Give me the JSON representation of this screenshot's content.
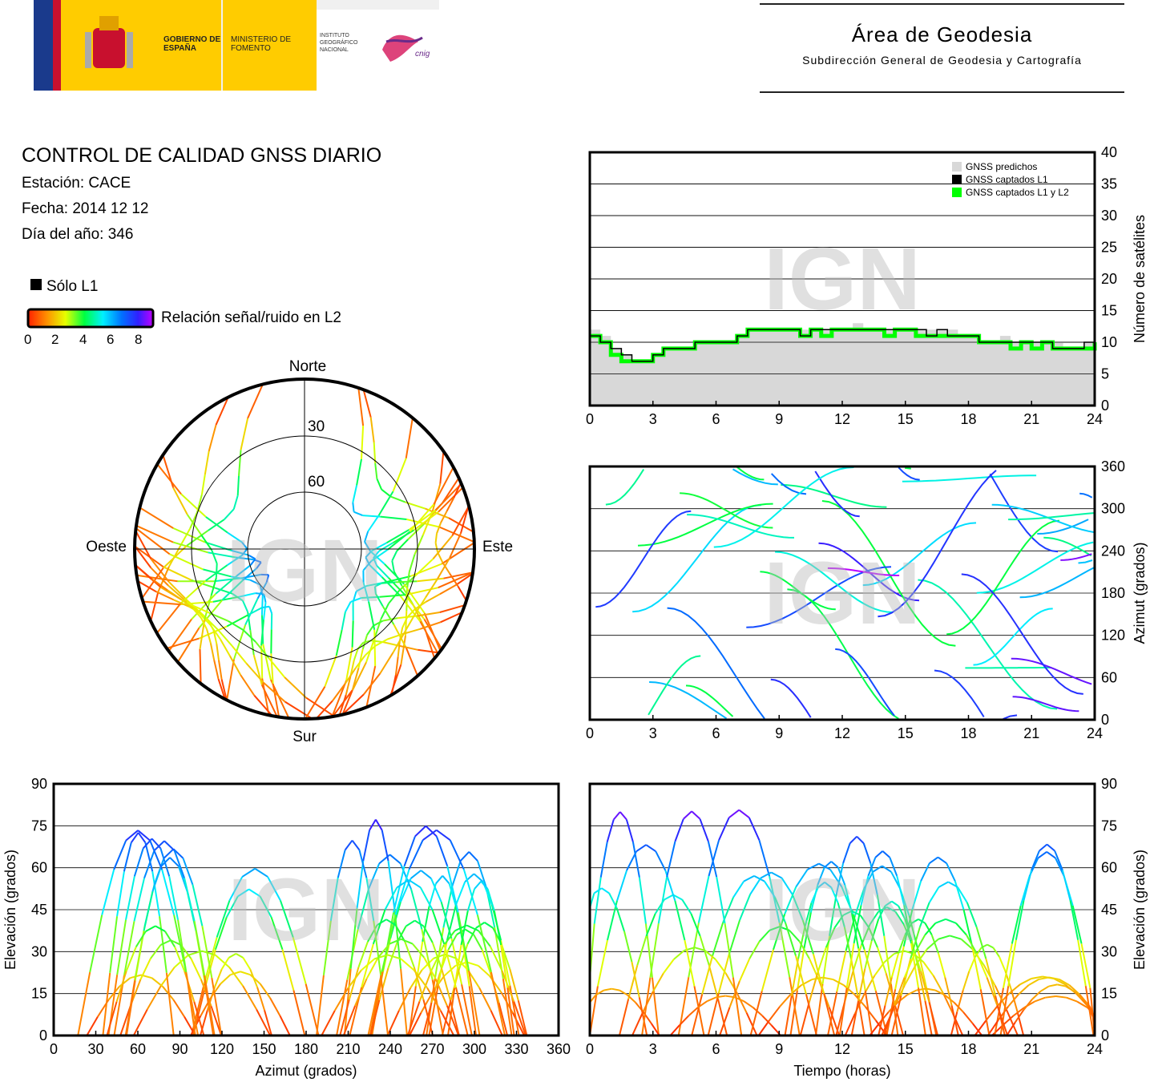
{
  "header": {
    "gobierno": "GOBIERNO DE ESPAÑA",
    "ministerio": "MINISTERIO DE FOMENTO",
    "instituto": "INSTITUTO GEOGRÁFICO NACIONAL",
    "cnig": "cnig",
    "area_title": "Área de Geodesia",
    "area_subtitle": "Subdirección General de Geodesia y Cartografía"
  },
  "info": {
    "title": "CONTROL DE CALIDAD GNSS DIARIO",
    "station": "Estación: CACE",
    "date": "Fecha: 2014 12 12",
    "doy": "Día del año: 346"
  },
  "legend": {
    "solo_l1": "Sólo L1",
    "snr_label": "Relación señal/ruido en L2",
    "snr_ticks": [
      "0",
      "2",
      "4",
      "6",
      "8"
    ],
    "snr_colors": [
      "#000000",
      "#ff2a00",
      "#ffaa00",
      "#e6ff00",
      "#00ff40",
      "#00f0ff",
      "#0080ff",
      "#2020ff",
      "#9000ff",
      "#ff00ff"
    ]
  },
  "watermark": "IGN",
  "chart_data": [
    {
      "id": "skyplot",
      "type": "scatter",
      "title": "",
      "directions": {
        "north": "Norte",
        "south": "Sur",
        "west": "Oeste",
        "east": "Este"
      },
      "elevation_rings": [
        "30",
        "60"
      ],
      "note": "polar sky plot of satellite tracks, colored by L2 SNR"
    },
    {
      "id": "satellites",
      "type": "area",
      "xlim": [
        0,
        24
      ],
      "ylim": [
        0,
        40
      ],
      "xticks": [
        "0",
        "3",
        "6",
        "9",
        "12",
        "15",
        "18",
        "21",
        "24"
      ],
      "yticks": [
        "0",
        "5",
        "10",
        "15",
        "20",
        "25",
        "30",
        "35",
        "40"
      ],
      "ylabel": "Número de satélites",
      "series": [
        {
          "name": "GNSS predichos",
          "color": "#d8d8d8"
        },
        {
          "name": "GNSS captados L1",
          "color": "#000000"
        },
        {
          "name": "GNSS captados L1 y L2",
          "color": "#00ff00"
        }
      ],
      "x": [
        0,
        0.5,
        1,
        1.5,
        2,
        2.5,
        3,
        3.5,
        4,
        4.5,
        5,
        5.5,
        6,
        6.5,
        7,
        7.5,
        8,
        8.5,
        9,
        9.5,
        10,
        10.5,
        11,
        11.5,
        12,
        12.5,
        13,
        13.5,
        14,
        14.5,
        15,
        15.5,
        16,
        16.5,
        17,
        17.5,
        18,
        18.5,
        19,
        19.5,
        20,
        20.5,
        21,
        21.5,
        22,
        22.5,
        23,
        23.5,
        24
      ],
      "predicted": [
        12,
        11,
        9,
        8,
        7,
        7,
        8,
        9,
        9,
        9,
        10,
        10,
        10,
        10,
        11,
        12,
        12,
        12,
        12,
        12,
        12,
        12,
        12,
        12,
        12,
        13,
        12,
        12,
        12,
        12,
        12,
        12,
        12,
        12,
        12,
        11,
        11,
        10,
        10,
        11,
        10,
        10,
        10,
        10,
        10,
        9,
        9,
        10,
        11
      ],
      "captured_l1": [
        11,
        10,
        9,
        8,
        7,
        7,
        8,
        9,
        9,
        9,
        10,
        10,
        10,
        10,
        11,
        12,
        12,
        12,
        12,
        12,
        11,
        12,
        12,
        12,
        12,
        12,
        12,
        12,
        12,
        12,
        12,
        12,
        11,
        12,
        11,
        11,
        11,
        10,
        10,
        10,
        10,
        10,
        10,
        10,
        9,
        9,
        9,
        10,
        10
      ],
      "captured_l1_l2": [
        11,
        10,
        8,
        7,
        7,
        7,
        8,
        9,
        9,
        9,
        10,
        10,
        10,
        10,
        11,
        12,
        12,
        12,
        12,
        12,
        11,
        12,
        11,
        12,
        12,
        12,
        12,
        12,
        11,
        12,
        12,
        11,
        11,
        11,
        11,
        11,
        11,
        10,
        10,
        10,
        9,
        10,
        9,
        10,
        9,
        9,
        9,
        9,
        10
      ]
    },
    {
      "id": "azimuth_time",
      "type": "scatter",
      "xlim": [
        0,
        24
      ],
      "ylim": [
        0,
        360
      ],
      "xticks": [
        "0",
        "3",
        "6",
        "9",
        "12",
        "15",
        "18",
        "21",
        "24"
      ],
      "yticks": [
        "0",
        "60",
        "120",
        "180",
        "240",
        "300",
        "360"
      ],
      "ylabel": "Azimut (grados)"
    },
    {
      "id": "elevation_azimuth",
      "type": "scatter",
      "xlim": [
        0,
        360
      ],
      "ylim": [
        0,
        90
      ],
      "xticks": [
        "0",
        "30",
        "60",
        "90",
        "120",
        "150",
        "180",
        "210",
        "240",
        "270",
        "300",
        "330",
        "360"
      ],
      "yticks": [
        "0",
        "15",
        "30",
        "45",
        "60",
        "75",
        "90"
      ],
      "xlabel": "Azimut (grados)",
      "ylabel": "Elevación (grados)"
    },
    {
      "id": "elevation_time",
      "type": "scatter",
      "xlim": [
        0,
        24
      ],
      "ylim": [
        0,
        90
      ],
      "xticks": [
        "0",
        "3",
        "6",
        "9",
        "12",
        "15",
        "18",
        "21",
        "24"
      ],
      "yticks": [
        "0",
        "15",
        "30",
        "45",
        "60",
        "75",
        "90"
      ],
      "xlabel": "Tiempo (horas)",
      "ylabel": "Elevación (grados)"
    }
  ]
}
